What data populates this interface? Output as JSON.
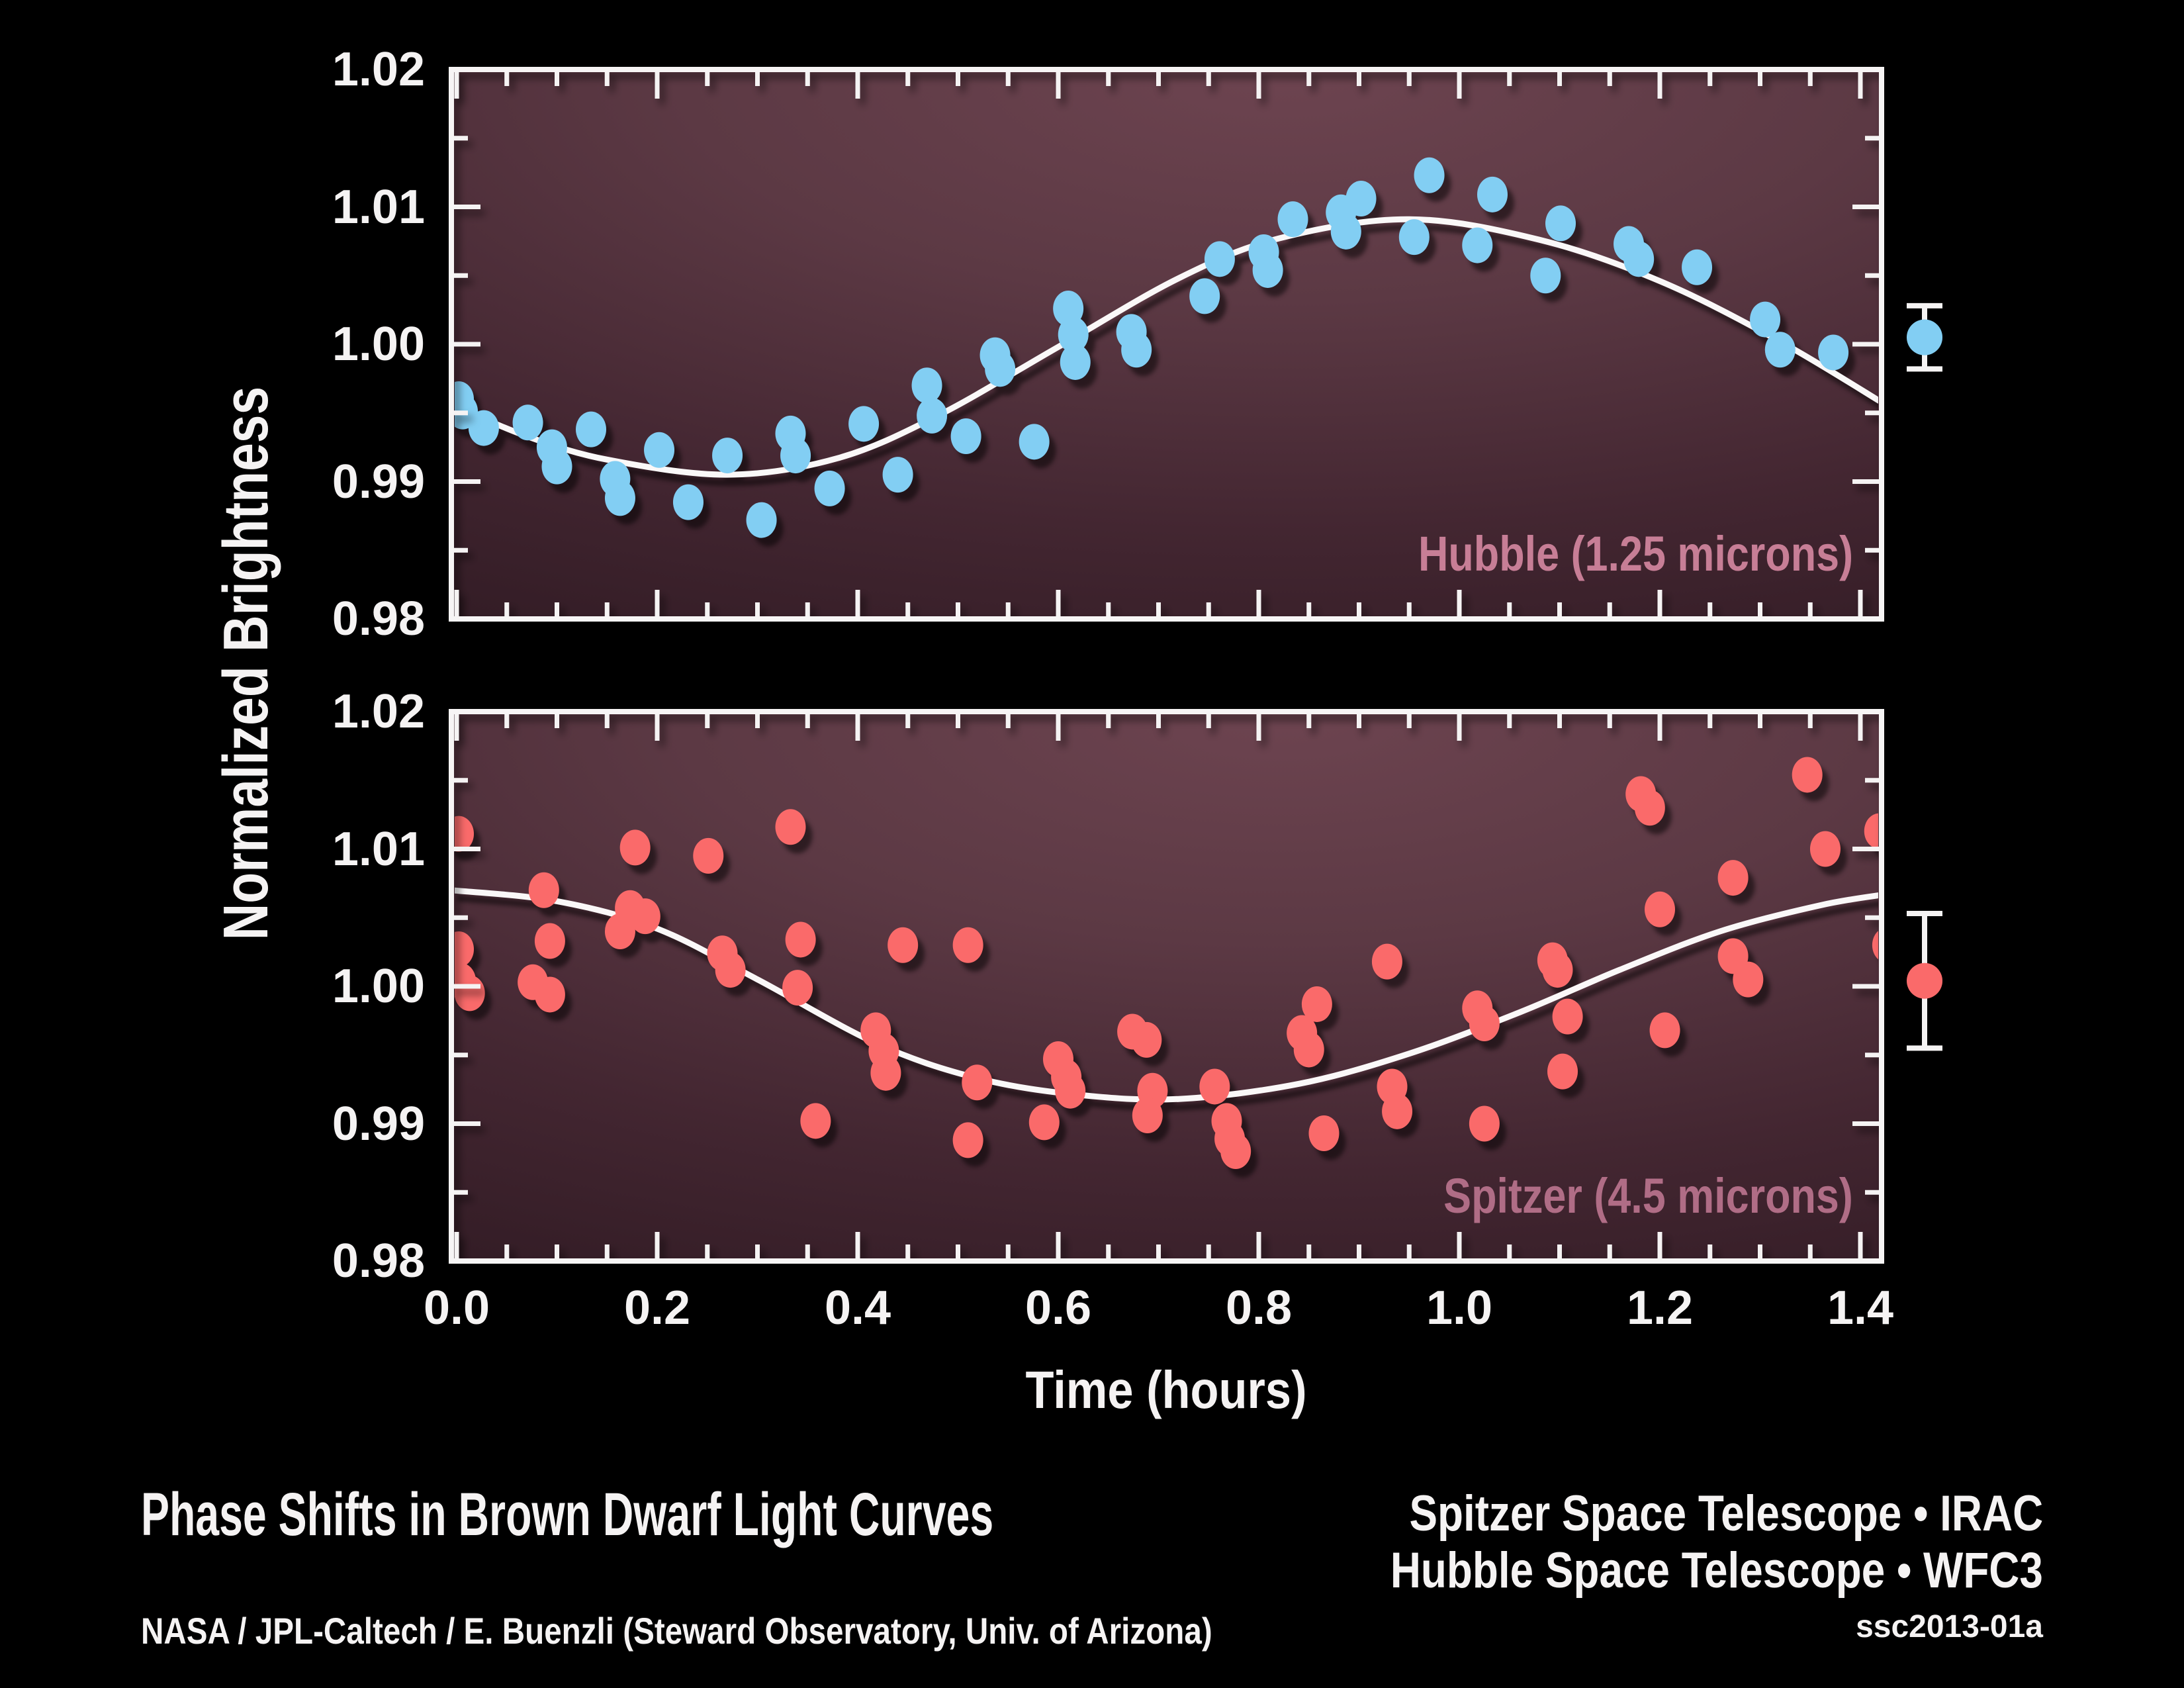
{
  "figure": {
    "background_color": "#000000",
    "y_axis_title": "Normalized Brightness",
    "x_axis_title": "Time (hours)",
    "footer": {
      "title": "Phase Shifts in Brown Dwarf Light Curves",
      "credit": "NASA / JPL-Caltech / E. Buenzli (Steward Observatory, Univ. of Arizona)",
      "instrument_line1": "Spitzer Space Telescope • IRAC",
      "instrument_line2": "Hubble Space Telescope • WFC3",
      "image_id": "ssc2013-01a"
    }
  },
  "axes": {
    "x_tick_labels": [
      "0.0",
      "0.2",
      "0.4",
      "0.6",
      "0.8",
      "1.0",
      "1.2",
      "1.4"
    ],
    "x_tick_values": [
      0.0,
      0.2,
      0.4,
      0.6,
      0.8,
      1.0,
      1.2,
      1.4
    ],
    "x_minor_step": 0.05,
    "y_tick_labels": [
      "1.02",
      "1.01",
      "1.00",
      "0.99",
      "0.98"
    ],
    "y_tick_values": [
      1.02,
      1.01,
      1.0,
      0.99,
      0.98
    ],
    "y_minor_step": 0.005,
    "x_range": [
      0.0,
      1.42
    ],
    "y_range": [
      0.98,
      1.02
    ],
    "grid": false,
    "tick_color": "#f5f3f3",
    "frame_color": "#f7f5f5",
    "panel_gradient": [
      "#6d4450",
      "#5c3944",
      "#432631",
      "#311b24"
    ]
  },
  "chart_data": [
    {
      "type": "scatter",
      "telescope": "Hubble",
      "label": "Hubble (1.25 microns)",
      "label_color": "#c77e96",
      "point_color": "#82cef3",
      "curve_color": "#faf8f8",
      "xlabel": "Time (hours)",
      "ylabel": "Normalized Brightness",
      "xlim": [
        0.0,
        1.42
      ],
      "ylim": [
        0.98,
        1.02
      ],
      "points": [
        [
          0.002,
          0.996
        ],
        [
          0.006,
          0.9951
        ],
        [
          0.027,
          0.9939
        ],
        [
          0.071,
          0.9943
        ],
        [
          0.095,
          0.9925
        ],
        [
          0.1,
          0.9911
        ],
        [
          0.134,
          0.9938
        ],
        [
          0.158,
          0.9902
        ],
        [
          0.163,
          0.9888
        ],
        [
          0.202,
          0.9923
        ],
        [
          0.231,
          0.9885
        ],
        [
          0.27,
          0.9919
        ],
        [
          0.304,
          0.9872
        ],
        [
          0.333,
          0.9935
        ],
        [
          0.338,
          0.9919
        ],
        [
          0.372,
          0.9895
        ],
        [
          0.406,
          0.9942
        ],
        [
          0.44,
          0.9905
        ],
        [
          0.469,
          0.997
        ],
        [
          0.474,
          0.9948
        ],
        [
          0.508,
          0.9933
        ],
        [
          0.537,
          0.9992
        ],
        [
          0.542,
          0.9982
        ],
        [
          0.576,
          0.9929
        ],
        [
          0.61,
          1.0026
        ],
        [
          0.615,
          1.0007
        ],
        [
          0.617,
          0.9987
        ],
        [
          0.673,
          1.0009
        ],
        [
          0.678,
          0.9996
        ],
        [
          0.746,
          1.0035
        ],
        [
          0.761,
          1.0062
        ],
        [
          0.805,
          1.0067
        ],
        [
          0.809,
          1.0054
        ],
        [
          0.834,
          1.0091
        ],
        [
          0.882,
          1.0096
        ],
        [
          0.887,
          1.0082
        ],
        [
          0.902,
          1.0106
        ],
        [
          0.955,
          1.0078
        ],
        [
          0.97,
          1.0123
        ],
        [
          1.018,
          1.0072
        ],
        [
          1.033,
          1.0109
        ],
        [
          1.086,
          1.005
        ],
        [
          1.101,
          1.0088
        ],
        [
          1.169,
          1.0073
        ],
        [
          1.179,
          1.0062
        ],
        [
          1.237,
          1.0056
        ],
        [
          1.305,
          1.0018
        ],
        [
          1.32,
          0.9996
        ],
        [
          1.373,
          0.9994
        ]
      ],
      "model_curve": [
        [
          -0.005,
          0.9956
        ],
        [
          0.07,
          0.9933
        ],
        [
          0.15,
          0.9916
        ],
        [
          0.27,
          0.9905
        ],
        [
          0.38,
          0.9917
        ],
        [
          0.48,
          0.9948
        ],
        [
          0.6,
          0.9998
        ],
        [
          0.72,
          1.0048
        ],
        [
          0.82,
          1.0077
        ],
        [
          0.95,
          1.0091
        ],
        [
          1.08,
          1.0076
        ],
        [
          1.2,
          1.0046
        ],
        [
          1.32,
          1.0002
        ],
        [
          1.425,
          0.9956
        ]
      ],
      "error_bar": {
        "value": 1.0005,
        "plus_minus": 0.0023
      }
    },
    {
      "type": "scatter",
      "telescope": "Spitzer",
      "label": "Spitzer (4.5 microns)",
      "label_color": "#b06d86",
      "point_color": "#fa6a6a",
      "curve_color": "#faf8f8",
      "xlabel": "Time (hours)",
      "ylabel": "Normalized Brightness",
      "xlim": [
        0.0,
        1.42
      ],
      "ylim": [
        0.98,
        1.02
      ],
      "points": [
        [
          0.002,
          1.0111
        ],
        [
          0.002,
          1.0027
        ],
        [
          0.004,
          1.0004
        ],
        [
          0.013,
          0.9995
        ],
        [
          0.076,
          1.0003
        ],
        [
          0.093,
          0.9994
        ],
        [
          0.087,
          1.007
        ],
        [
          0.093,
          1.0033
        ],
        [
          0.163,
          1.004
        ],
        [
          0.173,
          1.0057
        ],
        [
          0.178,
          1.0101
        ],
        [
          0.188,
          1.0051
        ],
        [
          0.251,
          1.0095
        ],
        [
          0.265,
          1.0024
        ],
        [
          0.273,
          1.0012
        ],
        [
          0.333,
          1.0116
        ],
        [
          0.343,
          1.0034
        ],
        [
          0.34,
          0.9999
        ],
        [
          0.358,
          0.9902
        ],
        [
          0.418,
          0.9968
        ],
        [
          0.426,
          0.9953
        ],
        [
          0.428,
          0.9937
        ],
        [
          0.445,
          1.003
        ],
        [
          0.51,
          1.003
        ],
        [
          0.519,
          0.993
        ],
        [
          0.51,
          0.9888
        ],
        [
          0.586,
          0.9901
        ],
        [
          0.6,
          0.9947
        ],
        [
          0.608,
          0.9934
        ],
        [
          0.612,
          0.9924
        ],
        [
          0.674,
          0.9967
        ],
        [
          0.688,
          0.9961
        ],
        [
          0.694,
          0.9924
        ],
        [
          0.689,
          0.9906
        ],
        [
          0.756,
          0.9927
        ],
        [
          0.768,
          0.9902
        ],
        [
          0.771,
          0.9889
        ],
        [
          0.777,
          0.988
        ],
        [
          0.843,
          0.9966
        ],
        [
          0.85,
          0.9954
        ],
        [
          0.858,
          0.9987
        ],
        [
          0.865,
          0.9893
        ],
        [
          0.928,
          1.0018
        ],
        [
          0.933,
          0.9927
        ],
        [
          0.938,
          0.9909
        ],
        [
          1.018,
          0.9984
        ],
        [
          1.025,
          0.9973
        ],
        [
          1.025,
          0.99
        ],
        [
          1.093,
          1.0019
        ],
        [
          1.098,
          1.0012
        ],
        [
          1.108,
          0.9978
        ],
        [
          1.103,
          0.9938
        ],
        [
          1.181,
          1.014
        ],
        [
          1.19,
          1.013
        ],
        [
          1.2,
          1.0056
        ],
        [
          1.205,
          0.9968
        ],
        [
          1.273,
          1.0079
        ],
        [
          1.273,
          1.0022
        ],
        [
          1.288,
          1.0005
        ],
        [
          1.347,
          1.0154
        ],
        [
          1.365,
          1.01
        ],
        [
          1.419,
          1.0113
        ],
        [
          1.427,
          1.003
        ],
        [
          1.434,
          1.0023
        ]
      ],
      "model_curve": [
        [
          -0.005,
          1.007
        ],
        [
          0.1,
          1.0062
        ],
        [
          0.2,
          1.0042
        ],
        [
          0.3,
          1.0005
        ],
        [
          0.42,
          0.9958
        ],
        [
          0.52,
          0.9933
        ],
        [
          0.62,
          0.9921
        ],
        [
          0.72,
          0.9918
        ],
        [
          0.84,
          0.9929
        ],
        [
          0.95,
          0.9951
        ],
        [
          1.06,
          0.9981
        ],
        [
          1.16,
          1.0012
        ],
        [
          1.26,
          1.004
        ],
        [
          1.36,
          1.0059
        ],
        [
          1.425,
          1.0067
        ]
      ],
      "error_bar": {
        "value": 1.0004,
        "plus_minus": 0.0049
      }
    }
  ]
}
